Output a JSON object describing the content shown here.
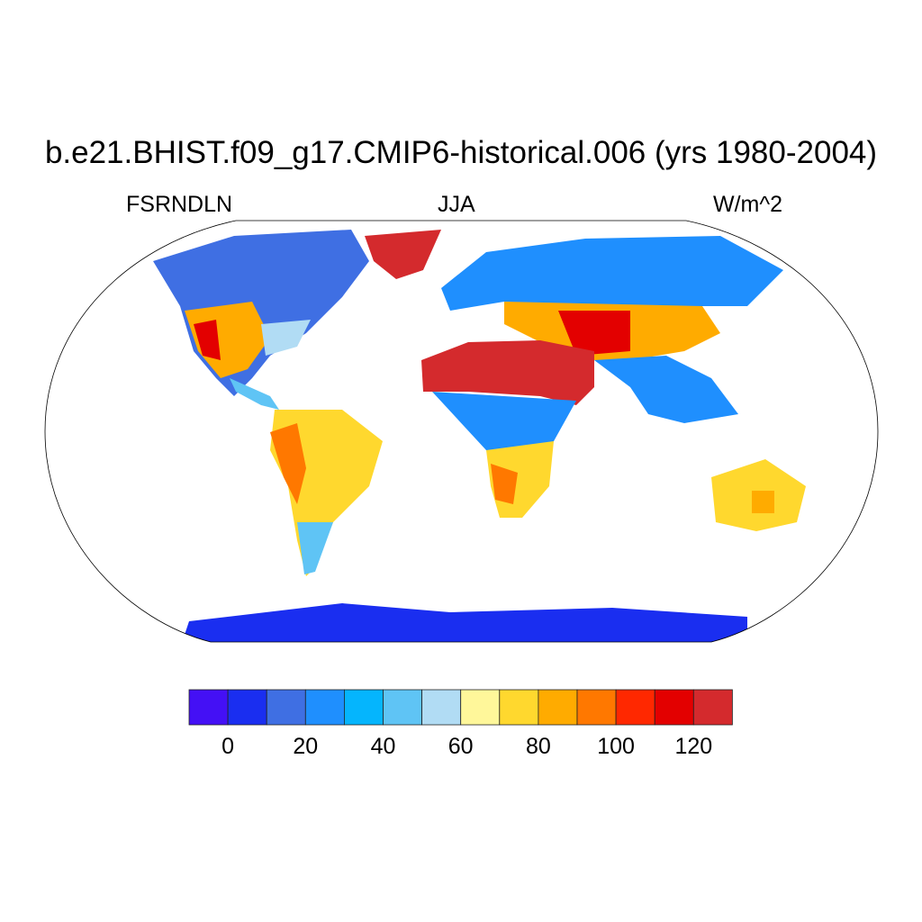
{
  "title": "b.e21.BHIST.f09_g17.CMIP6-historical.006 (yrs 1980-2004)",
  "left_label": "FSRNDLN",
  "center_label": "JJA",
  "right_label": "W/m^2",
  "projection": "Robinson",
  "colorbar": {
    "levels": [
      0,
      10,
      20,
      30,
      40,
      50,
      60,
      70,
      80,
      90,
      100,
      110,
      120
    ],
    "tick_labels": [
      "0",
      "20",
      "40",
      "60",
      "80",
      "100",
      "120"
    ],
    "colors": [
      "#4410f5",
      "#1a2ef0",
      "#3f6fe3",
      "#1f8ffe",
      "#05b5fd",
      "#5fc4f5",
      "#b1dcf4",
      "#fff79a",
      "#ffd82e",
      "#ffab00",
      "#ff7800",
      "#ff2800",
      "#e30000",
      "#d42a2d"
    ]
  }
}
